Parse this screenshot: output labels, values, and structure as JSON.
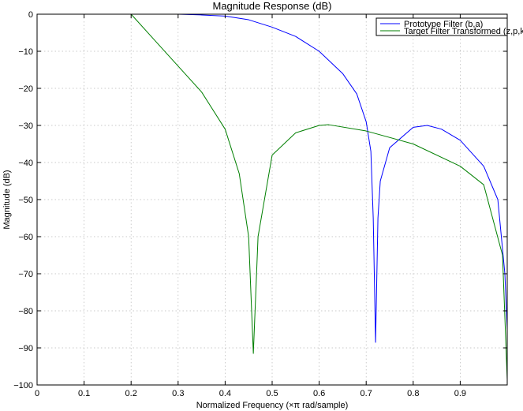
{
  "chart_data": {
    "type": "line",
    "title": "Magnitude Response (dB)",
    "xlabel": "Normalized Frequency (×π rad/sample)",
    "ylabel": "Magnitude (dB)",
    "xlim": [
      0,
      1
    ],
    "ylim": [
      -100,
      0
    ],
    "x_ticks": [
      0,
      0.1,
      0.2,
      0.3,
      0.4,
      0.5,
      0.6,
      0.7,
      0.8,
      0.9
    ],
    "x_tick_labels": [
      "0",
      "0.1",
      "0.2",
      "0.3",
      "0.4",
      "0.5",
      "0.6",
      "0.7",
      "0.8",
      "0.9"
    ],
    "y_ticks": [
      0,
      -10,
      -20,
      -30,
      -40,
      -50,
      -60,
      -70,
      -80,
      -90,
      -100
    ],
    "y_tick_labels": [
      "0",
      "−10",
      "−20",
      "−30",
      "−40",
      "−50",
      "−60",
      "−70",
      "−80",
      "−90",
      "−100"
    ],
    "grid": true,
    "legend_position": "top-right",
    "series": [
      {
        "name": "Prototype Filter (b,a)",
        "color": "#0000ff",
        "points": [
          [
            0,
            0
          ],
          [
            0.2,
            0
          ],
          [
            0.3,
            0
          ],
          [
            0.35,
            -0.2
          ],
          [
            0.4,
            -0.5
          ],
          [
            0.45,
            -1.5
          ],
          [
            0.5,
            -3.5
          ],
          [
            0.55,
            -6
          ],
          [
            0.6,
            -10
          ],
          [
            0.65,
            -16
          ],
          [
            0.68,
            -21.5
          ],
          [
            0.7,
            -29
          ],
          [
            0.71,
            -37
          ],
          [
            0.715,
            -55
          ],
          [
            0.72,
            -88.5
          ],
          [
            0.725,
            -55
          ],
          [
            0.73,
            -45
          ],
          [
            0.75,
            -36
          ],
          [
            0.8,
            -30.5
          ],
          [
            0.83,
            -30
          ],
          [
            0.86,
            -31
          ],
          [
            0.9,
            -34
          ],
          [
            0.95,
            -41
          ],
          [
            0.98,
            -50
          ],
          [
            0.995,
            -70
          ],
          [
            1.0,
            -85
          ]
        ]
      },
      {
        "name": "Target Filter Transformed (z,p,k)",
        "color": "#007f00",
        "points": [
          [
            0,
            0
          ],
          [
            0.15,
            0
          ],
          [
            0.2,
            0
          ],
          [
            0.25,
            -7
          ],
          [
            0.3,
            -14
          ],
          [
            0.35,
            -21
          ],
          [
            0.4,
            -31
          ],
          [
            0.43,
            -43
          ],
          [
            0.45,
            -60
          ],
          [
            0.46,
            -91.5
          ],
          [
            0.47,
            -60
          ],
          [
            0.5,
            -38
          ],
          [
            0.55,
            -32
          ],
          [
            0.6,
            -30
          ],
          [
            0.62,
            -29.8
          ],
          [
            0.7,
            -31.5
          ],
          [
            0.8,
            -35
          ],
          [
            0.9,
            -41
          ],
          [
            0.95,
            -46
          ],
          [
            0.99,
            -65
          ],
          [
            1.0,
            -98.5
          ]
        ]
      }
    ]
  }
}
